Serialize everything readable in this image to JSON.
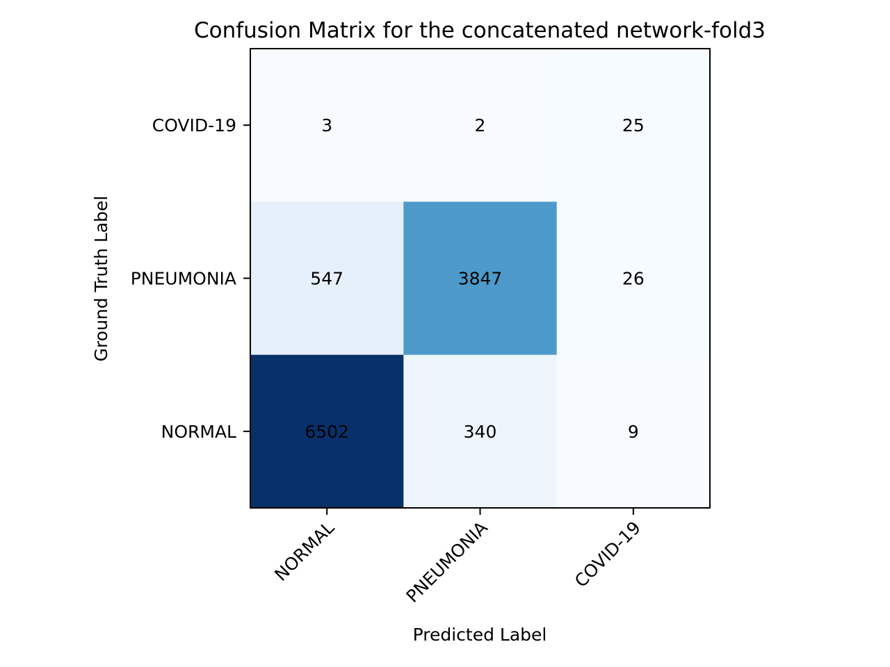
{
  "chart_data": {
    "type": "heatmap",
    "title": "Confusion Matrix for the concatenated network-fold3",
    "xlabel": "Predicted Label",
    "ylabel": "Ground Truth Label",
    "x_categories": [
      "NORMAL",
      "PNEUMONIA",
      "COVID-19"
    ],
    "y_categories_top_to_bottom": [
      "COVID-19",
      "PNEUMONIA",
      "NORMAL"
    ],
    "matrix": [
      [
        3,
        2,
        25
      ],
      [
        547,
        3847,
        26
      ],
      [
        6502,
        340,
        9
      ]
    ],
    "colormap": "Blues",
    "color_low": "#f7fbff",
    "color_high": "#08306b",
    "grid": false,
    "colorbar": false
  }
}
